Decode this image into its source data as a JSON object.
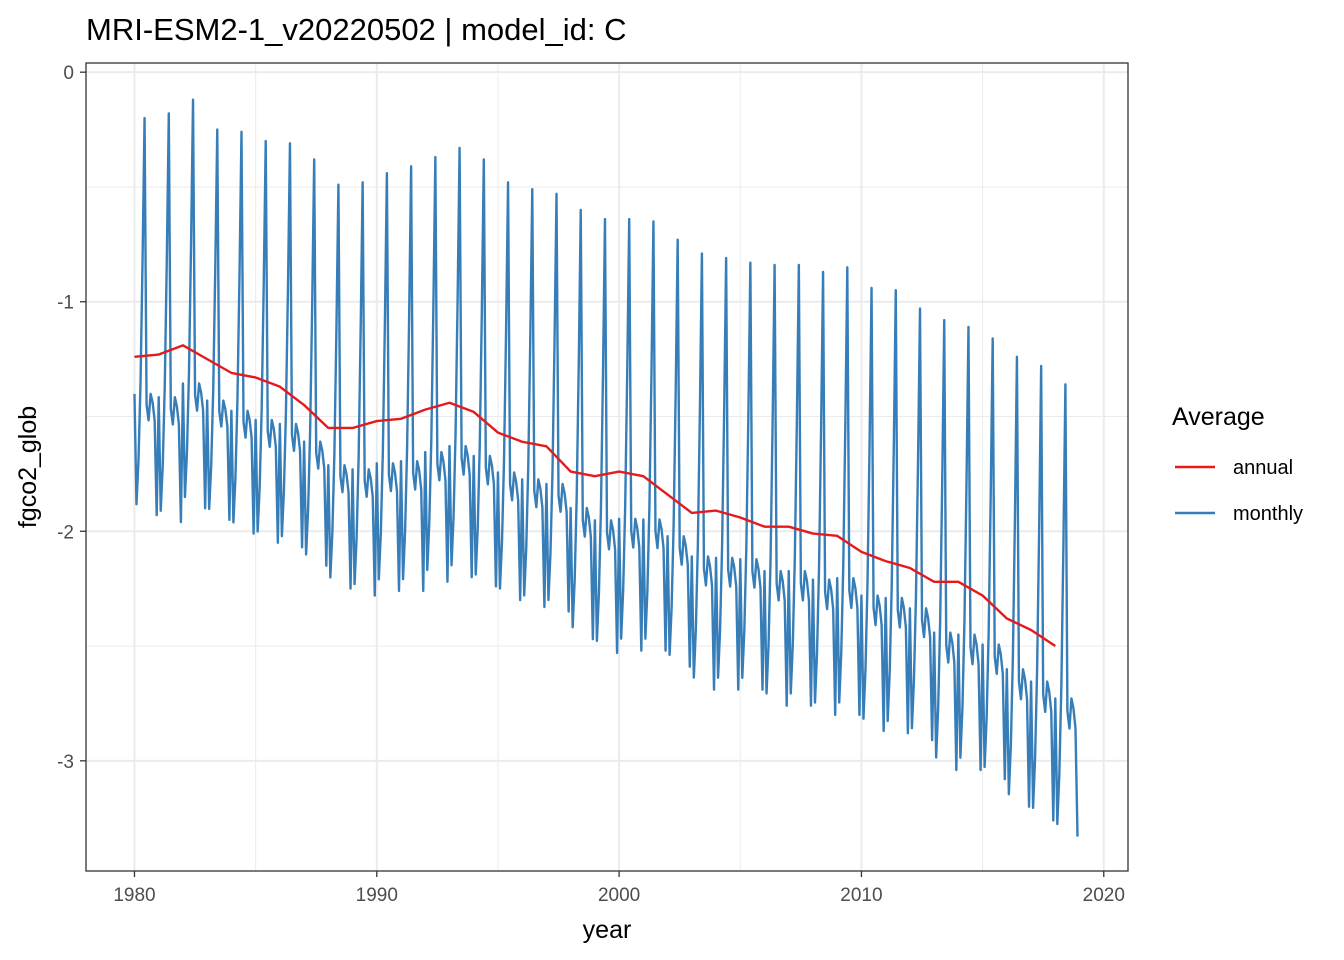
{
  "chart_data": {
    "type": "line",
    "title": "MRI-ESM2-1_v20220502 | model_id: C",
    "xlabel": "year",
    "ylabel": "fgco2_glob",
    "xlim": [
      1978.0,
      2021.0
    ],
    "ylim": [
      -3.48,
      0.04
    ],
    "x_ticks": [
      1980,
      1990,
      2000,
      2010,
      2020
    ],
    "x_tick_labels": [
      "1980",
      "1990",
      "2000",
      "2010",
      "2020"
    ],
    "y_ticks": [
      0,
      -1,
      -2,
      -3
    ],
    "y_tick_labels": [
      "0",
      "-1",
      "-2",
      "-3"
    ],
    "grid": true,
    "legend": {
      "title": "Average",
      "position": "right",
      "entries": [
        {
          "label": "annual",
          "color": "#e41a1c"
        },
        {
          "label": "monthly",
          "color": "#377eb8"
        }
      ]
    },
    "series": [
      {
        "name": "annual",
        "color": "#e41a1c",
        "x": [
          1980,
          1981,
          1982,
          1983,
          1984,
          1985,
          1986,
          1987,
          1988,
          1989,
          1990,
          1991,
          1992,
          1993,
          1994,
          1995,
          1996,
          1997,
          1998,
          1999,
          2000,
          2001,
          2002,
          2003,
          2004,
          2005,
          2006,
          2007,
          2008,
          2009,
          2010,
          2011,
          2012,
          2013,
          2014,
          2015,
          2016,
          2017,
          2018
        ],
        "y": [
          -1.24,
          -1.23,
          -1.19,
          -1.25,
          -1.31,
          -1.33,
          -1.37,
          -1.45,
          -1.55,
          -1.55,
          -1.52,
          -1.51,
          -1.47,
          -1.44,
          -1.48,
          -1.57,
          -1.61,
          -1.63,
          -1.74,
          -1.76,
          -1.74,
          -1.76,
          -1.84,
          -1.92,
          -1.91,
          -1.94,
          -1.98,
          -1.98,
          -2.01,
          -2.02,
          -2.09,
          -2.13,
          -2.16,
          -2.22,
          -2.22,
          -2.28,
          -2.38,
          -2.43,
          -2.5
        ]
      },
      {
        "name": "monthly",
        "color": "#377eb8",
        "x_start": 1980.0,
        "x_step": 0.083333,
        "monthly_shape": [
          0.0,
          -0.5,
          -0.3,
          0.05,
          0.6,
          1.25,
          -0.05,
          -0.12,
          0.0,
          -0.04,
          -0.12,
          -0.55
        ],
        "cycle_peaks": [
          -0.2,
          -0.18,
          -0.12,
          -0.25,
          -0.26,
          -0.3,
          -0.31,
          -0.38,
          -0.49,
          -0.48,
          -0.44,
          -0.41,
          -0.37,
          -0.33,
          -0.38,
          -0.48,
          -0.51,
          -0.53,
          -0.6,
          -0.64,
          -0.64,
          -0.65,
          -0.73,
          -0.79,
          -0.81,
          -0.83,
          -0.84,
          -0.84,
          -0.87,
          -0.85,
          -0.94,
          -0.95,
          -1.03,
          -1.08,
          -1.11,
          -1.16,
          -1.24,
          -1.28,
          -1.36
        ],
        "cycle_troughs": [
          -1.93,
          -1.96,
          -1.9,
          -1.95,
          -2.01,
          -2.05,
          -2.07,
          -2.15,
          -2.25,
          -2.28,
          -2.26,
          -2.26,
          -2.22,
          -2.2,
          -2.24,
          -2.3,
          -2.33,
          -2.35,
          -2.47,
          -2.53,
          -2.52,
          -2.52,
          -2.59,
          -2.69,
          -2.69,
          -2.69,
          -2.76,
          -2.76,
          -2.8,
          -2.8,
          -2.87,
          -2.88,
          -2.91,
          -3.04,
          -3.04,
          -3.08,
          -3.2,
          -3.26,
          -3.33
        ]
      }
    ]
  }
}
